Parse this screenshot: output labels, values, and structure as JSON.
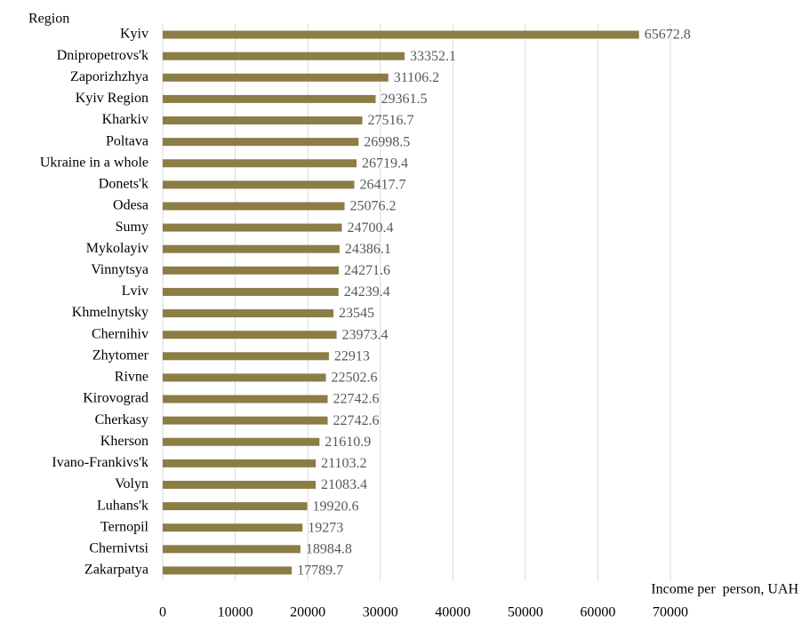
{
  "chart_data": {
    "type": "bar",
    "orientation": "horizontal",
    "y_axis_label": "Region",
    "x_axis_label": "Income per  person, UAH",
    "categories": [
      "Kyiv",
      "Dnipropetrovs'k",
      "Zaporizhzhya",
      "Kyiv Region",
      "Kharkiv",
      "Poltava",
      "Ukraine in a whole",
      "Donets'k",
      "Odesa",
      "Sumy",
      "Mykolayiv",
      "Vinnytsya",
      "Lviv",
      "Khmelnytsky",
      "Chernihiv",
      "Zhytomer",
      "Rivne",
      "Kirovograd",
      "Cherkasy",
      "Kherson",
      "Ivano-Frankivs'k",
      "Volyn",
      "Luhans'k",
      "Ternopil",
      "Chernivtsi",
      "Zakarpatya"
    ],
    "values": [
      65672.8,
      33352.1,
      31106.2,
      29361.5,
      27516.7,
      26998.5,
      26719.4,
      26417.7,
      25076.2,
      24700.4,
      24386.1,
      24271.6,
      24239.4,
      23545,
      23973.4,
      22913,
      22502.6,
      22742.6,
      22742.6,
      21610.9,
      21103.2,
      21083.4,
      19920.6,
      19273,
      18984.8,
      17789.7
    ],
    "color": "#8b7d45",
    "xlim": [
      0,
      70000
    ],
    "xticks": [
      0,
      10000,
      20000,
      30000,
      40000,
      50000,
      60000,
      70000
    ],
    "grid": true
  }
}
